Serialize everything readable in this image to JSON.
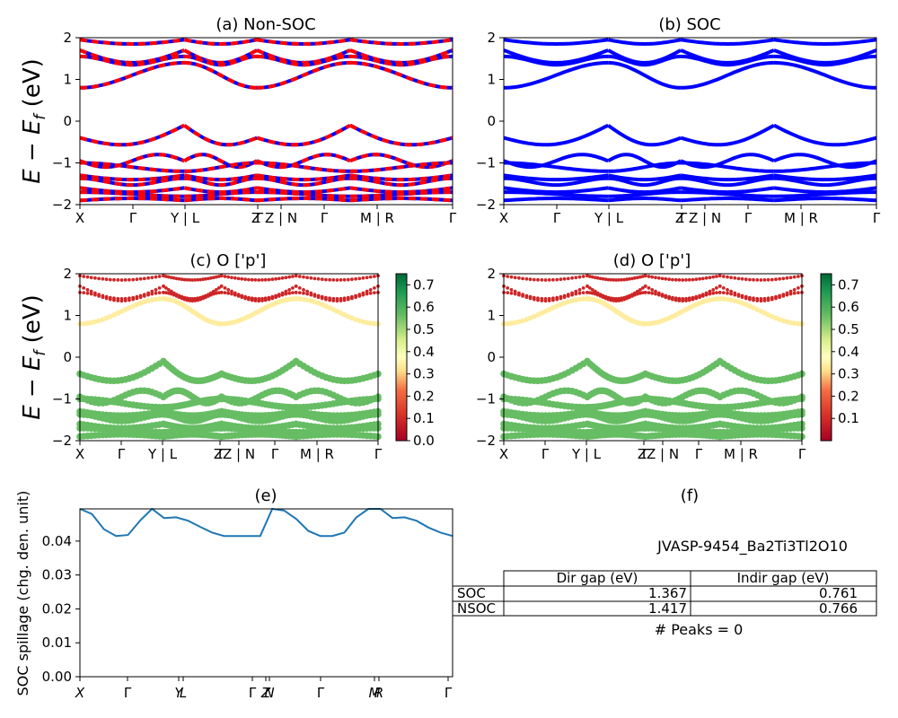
{
  "panels": {
    "a": {
      "title": "(a) Non-SOC"
    },
    "b": {
      "title": "(b) SOC"
    },
    "c": {
      "title": "(c)  O ['p']"
    },
    "d": {
      "title": "(d) O ['p']"
    },
    "e": {
      "title": "(e)"
    },
    "f": {
      "title": "(f)"
    }
  },
  "band_axis": {
    "ylabel": "E − E_f (eV)",
    "yticks": [
      "2",
      "1",
      "0",
      "−1",
      "−2"
    ],
    "kpath_ab": [
      "X",
      "Γ",
      "Y | L",
      "Z",
      "Γ",
      "Z | N",
      "Γ",
      "M | R",
      "Γ"
    ],
    "kpath_cd": [
      "X",
      "Γ",
      "Y | L",
      "Z",
      "Γ",
      "Z | N",
      "Γ",
      "M | R",
      "Γ"
    ]
  },
  "colorbar_c": {
    "ticks": [
      "0.7",
      "0.6",
      "0.5",
      "0.4",
      "0.3",
      "0.2",
      "0.1",
      "0.0"
    ]
  },
  "colorbar_d": {
    "ticks": [
      "0.7",
      "0.6",
      "0.5",
      "0.4",
      "0.3",
      "0.2",
      "0.1"
    ]
  },
  "colors": {
    "nonsoc_a": "#ff0000",
    "nonsoc_b": "#0000ff",
    "soc": "#0000ff",
    "spillage": "#1f77b4"
  },
  "spillage_axis": {
    "ylabel": "SOC spillage (chg. den. unit)",
    "yticks": [
      "0.04",
      "0.03",
      "0.02",
      "0.01",
      "0.00"
    ],
    "xticks": [
      "X",
      "Γ",
      "Y",
      "L",
      "Γ",
      "Z",
      "N",
      "Γ",
      "M",
      "R",
      "Γ"
    ]
  },
  "table": {
    "material": "JVASP-9454_Ba2Ti3Tl2O10",
    "headers": [
      "Dir gap (eV)",
      "Indir gap (eV)"
    ],
    "rows": [
      {
        "label": "SOC",
        "dir": "1.367",
        "indir": "0.761"
      },
      {
        "label": "NSOC",
        "dir": "1.417",
        "indir": "0.766"
      }
    ],
    "peaks": "# Peaks = 0"
  },
  "chart_data": [
    {
      "type": "line",
      "title": "(a) Non-SOC",
      "ylabel": "E − E_f (eV)",
      "ylim": [
        -2,
        2
      ],
      "series_note": "band structure, dashed red/blue bands",
      "series": [
        {
          "values": [
            1.7,
            1.68,
            1.6,
            1.55,
            1.6
          ]
        },
        {
          "values": [
            1.45,
            1.35,
            1.4,
            1.5,
            1.45
          ]
        },
        {
          "values": [
            0.8,
            0.95,
            1.3,
            1.45,
            1.35
          ]
        },
        {
          "values": [
            -0.4,
            -0.55,
            -0.3,
            0.0,
            -0.6
          ]
        },
        {
          "values": [
            -1.0,
            -1.1,
            -0.9,
            -0.8,
            -1.05
          ]
        },
        {
          "values": [
            -1.3,
            -1.2,
            -1.35,
            -1.25,
            -1.3
          ]
        },
        {
          "values": [
            -1.6,
            -1.7,
            -1.55,
            -1.65,
            -1.6
          ]
        }
      ]
    },
    {
      "type": "line",
      "title": "(b) SOC",
      "ylabel": "E − E_f (eV)",
      "ylim": [
        -2,
        2
      ],
      "series": [
        {
          "values": [
            1.7,
            1.68,
            1.6,
            1.55,
            1.6
          ]
        },
        {
          "values": [
            0.8,
            0.95,
            1.3,
            1.45,
            1.35
          ]
        },
        {
          "values": [
            -0.4,
            -0.55,
            -0.3,
            0.0,
            -0.6
          ]
        },
        {
          "values": [
            -1.0,
            -1.1,
            -0.9,
            -0.8,
            -1.05
          ]
        },
        {
          "values": [
            -1.5,
            -1.6,
            -1.45,
            -1.55,
            -1.5
          ]
        }
      ]
    },
    {
      "type": "scatter",
      "title": "(c)  O ['p']",
      "ylim": [
        -2,
        2
      ],
      "colorbar": [
        0.0,
        0.75
      ]
    },
    {
      "type": "scatter",
      "title": "(d) O ['p']",
      "ylim": [
        -2,
        2
      ],
      "colorbar": [
        0.0,
        0.75
      ]
    },
    {
      "type": "line",
      "title": "(e)",
      "ylabel": "SOC spillage (chg. den. unit)",
      "ylim": [
        0.0,
        0.0495
      ],
      "series": [
        {
          "values": [
            0.0495,
            0.048,
            0.0435,
            0.0415,
            0.0418,
            0.046,
            0.0495,
            0.0468,
            0.047,
            0.046,
            0.0442,
            0.0425,
            0.0415,
            0.0415,
            0.0415,
            0.0415,
            0.0495,
            0.049,
            0.0465,
            0.043,
            0.0415,
            0.0415,
            0.0425,
            0.047,
            0.0495,
            0.0495,
            0.0468,
            0.047,
            0.046,
            0.044,
            0.0425,
            0.0415
          ]
        }
      ]
    },
    {
      "type": "table",
      "title": "(f)",
      "columns": [
        "",
        "Dir gap (eV)",
        "Indir gap (eV)"
      ],
      "rows": [
        [
          "SOC",
          1.367,
          0.761
        ],
        [
          "NSOC",
          1.417,
          0.766
        ]
      ]
    }
  ]
}
